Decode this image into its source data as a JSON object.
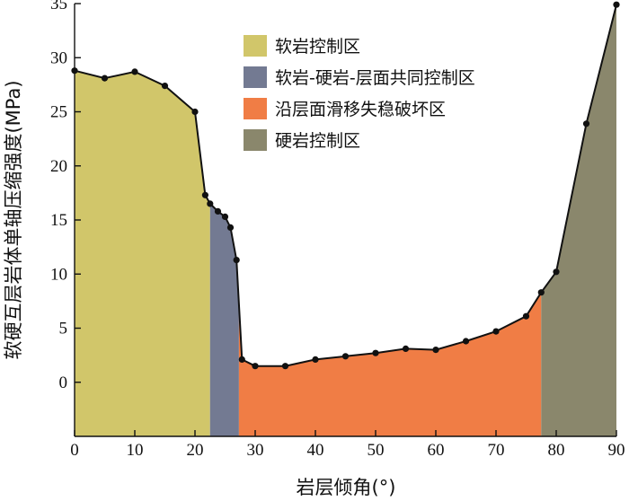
{
  "chart_data": {
    "type": "area",
    "xlabel": "岩层倾角(°)",
    "ylabel": "软硬互层岩体单轴压缩强度(MPa)",
    "xlim": [
      0,
      90
    ],
    "ylim": [
      -5,
      35
    ],
    "x_ticks": [
      0,
      10,
      20,
      30,
      40,
      50,
      60,
      70,
      80,
      90
    ],
    "y_ticks": [
      0,
      5,
      10,
      15,
      20,
      25,
      30,
      35
    ],
    "grid": false,
    "legend_position": "top-center",
    "points": [
      {
        "x": 0,
        "y": 28.8
      },
      {
        "x": 5,
        "y": 28.1
      },
      {
        "x": 10,
        "y": 28.7
      },
      {
        "x": 15,
        "y": 27.4
      },
      {
        "x": 20,
        "y": 25.0
      },
      {
        "x": 21.7,
        "y": 17.3
      },
      {
        "x": 22.5,
        "y": 16.5
      },
      {
        "x": 23.8,
        "y": 15.8
      },
      {
        "x": 25,
        "y": 15.3
      },
      {
        "x": 25.9,
        "y": 14.3
      },
      {
        "x": 26.9,
        "y": 11.3
      },
      {
        "x": 27.8,
        "y": 2.1
      },
      {
        "x": 30,
        "y": 1.5
      },
      {
        "x": 35,
        "y": 1.5
      },
      {
        "x": 40,
        "y": 2.1
      },
      {
        "x": 45,
        "y": 2.4
      },
      {
        "x": 50,
        "y": 2.7
      },
      {
        "x": 55,
        "y": 3.1
      },
      {
        "x": 60,
        "y": 3.0
      },
      {
        "x": 65,
        "y": 3.8
      },
      {
        "x": 70,
        "y": 4.7
      },
      {
        "x": 75,
        "y": 6.1
      },
      {
        "x": 77.5,
        "y": 8.3
      },
      {
        "x": 80,
        "y": 10.2
      },
      {
        "x": 85,
        "y": 23.9
      },
      {
        "x": 90,
        "y": 34.9
      }
    ],
    "regions": [
      {
        "name": "软岩控制区",
        "x_start": 0,
        "x_end": 22.5,
        "color": "#d1c66a"
      },
      {
        "name": "软岩-硬岩-层面共同控制区",
        "x_start": 22.5,
        "x_end": 27.3,
        "color": "#737a92"
      },
      {
        "name": "沿层面滑移失稳破坏区",
        "x_start": 27.3,
        "x_end": 77.5,
        "color": "#f07d45"
      },
      {
        "name": "硬岩控制区",
        "x_start": 77.5,
        "x_end": 90,
        "color": "#8a876c"
      }
    ]
  }
}
